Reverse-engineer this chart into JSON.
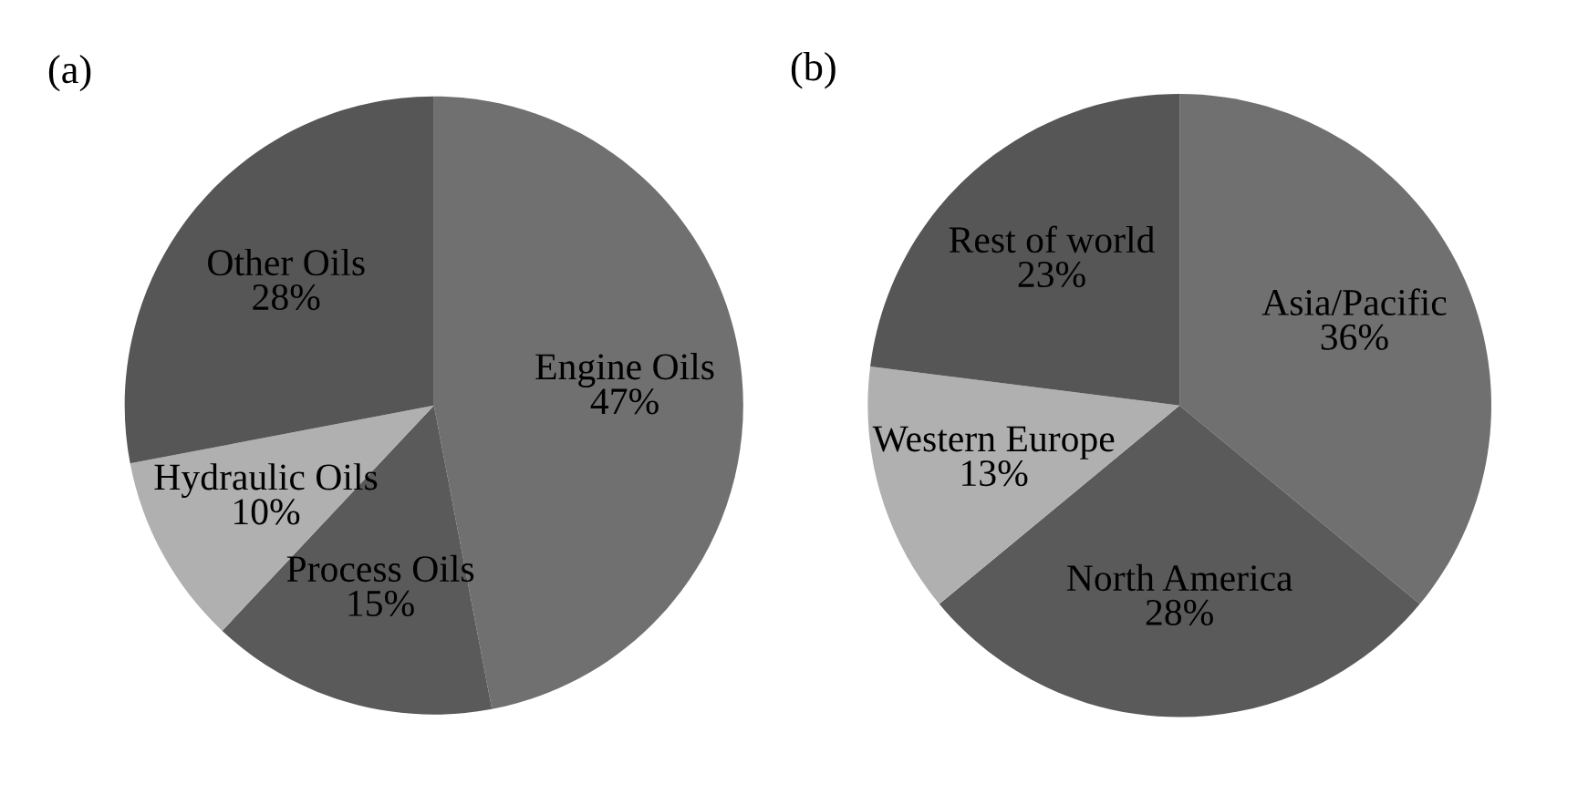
{
  "chart_data": [
    {
      "type": "pie",
      "title": "(a)",
      "categories": [
        "Engine Oils",
        "Process Oils",
        "Hydraulic Oils",
        "Other Oils"
      ],
      "values": [
        47,
        15,
        10,
        28
      ],
      "value_labels": [
        "47%",
        "15%",
        "10%",
        "28%"
      ],
      "colors": [
        "#707070",
        "#5a5a5a",
        "#b0b0b0",
        "#565656"
      ]
    },
    {
      "type": "pie",
      "title": "(b)",
      "categories": [
        "Asia/Pacific",
        "North America",
        "Western Europe",
        "Rest of world"
      ],
      "values": [
        36,
        28,
        13,
        23
      ],
      "value_labels": [
        "36%",
        "28%",
        "13%",
        "23%"
      ],
      "colors": [
        "#707070",
        "#5a5a5a",
        "#b0b0b0",
        "#565656"
      ]
    }
  ]
}
